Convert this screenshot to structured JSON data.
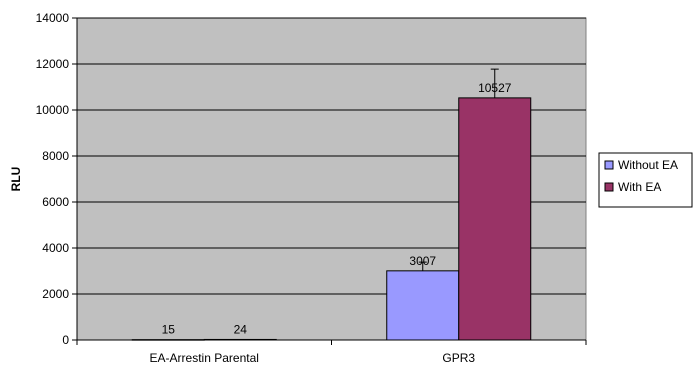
{
  "chart_data": {
    "type": "bar",
    "ylabel": "RLU",
    "ylim": [
      0,
      14000
    ],
    "ytick_step": 2000,
    "yticks": [
      "0",
      "2000",
      "4000",
      "6000",
      "8000",
      "10000",
      "12000",
      "14000"
    ],
    "grid": true,
    "legend_position": "right",
    "categories": [
      "EA-Arrestin Parental",
      "GPR3"
    ],
    "series": [
      {
        "name": "Without EA",
        "color": "#9999FF",
        "values": [
          15,
          3007
        ],
        "error": [
          0,
          380
        ],
        "data_labels": [
          "15",
          "3007"
        ]
      },
      {
        "name": "With EA",
        "color": "#993366",
        "values": [
          24,
          10527
        ],
        "error": [
          0,
          1250
        ],
        "data_labels": [
          "24",
          "10527"
        ]
      }
    ],
    "plot_background": "#C0C0C0"
  }
}
